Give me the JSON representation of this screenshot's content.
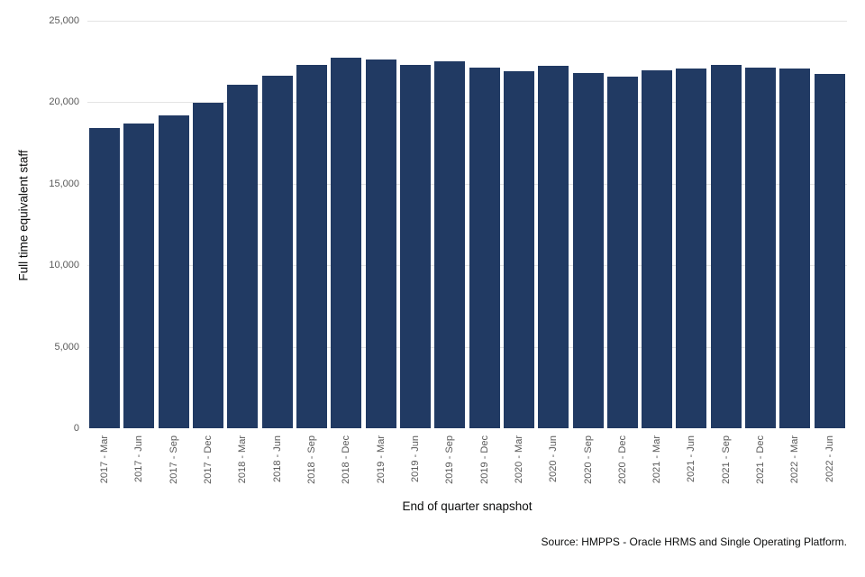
{
  "chart_data": {
    "type": "bar",
    "title": "",
    "xlabel": "End of quarter snapshot",
    "ylabel": "Full time equivalent staff",
    "source": "Source: HMPPS - Oracle HRMS and Single Operating Platform.",
    "categories": [
      "2017 - Mar",
      "2017 - Jun",
      "2017 - Sep",
      "2017 - Dec",
      "2018 - Mar",
      "2018 - Jun",
      "2018 - Sep",
      "2018 - Dec",
      "2019 - Mar",
      "2019 - Jun",
      "2019 - Sep",
      "2019 - Dec",
      "2020 - Mar",
      "2020 - Jun",
      "2020 - Sep",
      "2020 - Dec",
      "2021 - Mar",
      "2021 - Jun",
      "2021 - Sep",
      "2021 - Dec",
      "2022 - Mar",
      "2022 - Jun"
    ],
    "values": [
      18400,
      18700,
      19200,
      19950,
      21050,
      21650,
      22300,
      22750,
      22650,
      22300,
      22500,
      22150,
      21900,
      22250,
      21800,
      21600,
      21950,
      22050,
      22300,
      22150,
      22050,
      21750
    ],
    "ylim": [
      0,
      25000
    ],
    "yticks": [
      {
        "value": 0,
        "label": "0"
      },
      {
        "value": 5000,
        "label": "5,000"
      },
      {
        "value": 10000,
        "label": "10,000"
      },
      {
        "value": 15000,
        "label": "15,000"
      },
      {
        "value": 20000,
        "label": "20,000"
      },
      {
        "value": 25000,
        "label": "25,000"
      }
    ],
    "grid": true,
    "legend": "none",
    "colors": {
      "bar": "#213a63",
      "gridline": "#e4e4e4",
      "tick_label": "#595959",
      "axis_title": "#0b0c0c",
      "background": "#ffffff"
    }
  }
}
